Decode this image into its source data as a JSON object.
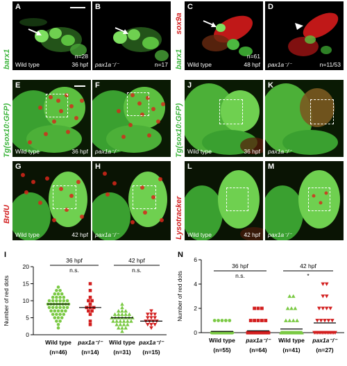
{
  "row1": {
    "side_label_left": "barx1",
    "side_label_right_green": "barx1",
    "side_label_right_red": "sox9a",
    "panels": [
      {
        "letter": "A",
        "bl": "Wild type",
        "br": "36 hpf",
        "tr": "",
        "n": "n=28"
      },
      {
        "letter": "B",
        "bl": "",
        "br": "",
        "genotype": "pax1a⁻/⁻",
        "n": "n=17"
      },
      {
        "letter": "C",
        "bl": "Wild type",
        "br": "48 hpf",
        "n": "n=61"
      },
      {
        "letter": "D",
        "genotype": "pax1a⁻/⁻",
        "n": "n=11/53"
      }
    ]
  },
  "row2": {
    "side_label_left": "Tg(sox10:GFP)",
    "side_label_right": "Tg(sox10:GFP)",
    "panels": [
      {
        "letter": "E",
        "bl": "Wild type",
        "br": "36 hpf"
      },
      {
        "letter": "F",
        "genotype": "pax1a⁻/⁻"
      },
      {
        "letter": "J",
        "bl": "Wild type",
        "br": "36 hpf"
      },
      {
        "letter": "K",
        "genotype": "pax1a⁻/⁻"
      }
    ]
  },
  "row3": {
    "side_label_left": "BrdU",
    "side_label_right": "Lysotracker",
    "panels": [
      {
        "letter": "G",
        "bl": "Wild type",
        "br": "42 hpf"
      },
      {
        "letter": "H",
        "genotype": "pax1a⁻/⁻"
      },
      {
        "letter": "L",
        "bl": "Wild type",
        "br": "42 hpf"
      },
      {
        "letter": "M",
        "genotype": "pax1a⁻/⁻"
      }
    ]
  },
  "chart_data": [
    {
      "type": "scatter",
      "panel_letter": "I",
      "ylabel": "Number of red dots",
      "ylim": [
        0,
        20
      ],
      "yticks": [
        0,
        5,
        10,
        15,
        20
      ],
      "group_labels": [
        "36 hpf",
        "42 hpf"
      ],
      "significance": [
        "n.s.",
        "n.s."
      ],
      "categories": [
        "Wild type",
        "pax1a⁻/⁻",
        "Wild type",
        "pax1a⁻/⁻"
      ],
      "n_labels": [
        "(n=46)",
        "(n=14)",
        "(n=31)",
        "(n=15)"
      ],
      "colors": [
        "#7ac943",
        "#d21e1e",
        "#7ac943",
        "#d21e1e"
      ],
      "markers": [
        "circle",
        "square",
        "triangle-up",
        "triangle-down"
      ],
      "means": [
        9,
        8,
        5,
        4
      ],
      "series": [
        {
          "values": [
            14,
            13,
            13,
            12,
            12,
            12,
            11,
            11,
            11,
            11,
            10,
            10,
            10,
            10,
            10,
            10,
            9,
            9,
            9,
            9,
            9,
            9,
            9,
            9,
            8,
            8,
            8,
            8,
            8,
            8,
            7,
            7,
            7,
            7,
            7,
            6,
            6,
            6,
            6,
            5,
            5,
            5,
            4,
            4,
            3,
            2
          ]
        },
        {
          "values": [
            15,
            13,
            11,
            10,
            10,
            9,
            8,
            8,
            8,
            7,
            7,
            6,
            4,
            3
          ]
        },
        {
          "values": [
            9,
            8,
            7,
            7,
            7,
            6,
            6,
            6,
            6,
            6,
            5,
            5,
            5,
            5,
            5,
            5,
            5,
            4,
            4,
            4,
            4,
            4,
            4,
            3,
            3,
            3,
            3,
            2,
            2,
            2,
            1
          ]
        },
        {
          "values": [
            7,
            6,
            6,
            6,
            5,
            5,
            5,
            4,
            4,
            4,
            4,
            3,
            3,
            3,
            2
          ]
        }
      ]
    },
    {
      "type": "scatter",
      "panel_letter": "N",
      "ylabel": "Number of red dots",
      "ylim": [
        0,
        6
      ],
      "yticks": [
        0,
        2,
        4,
        6
      ],
      "group_labels": [
        "36 hpf",
        "42 hpf"
      ],
      "significance": [
        "n.s.",
        "*"
      ],
      "categories": [
        "Wild type",
        "pax1a⁻/⁻",
        "Wild type",
        "pax1a⁻/⁻"
      ],
      "n_labels": [
        "(n=55)",
        "(n=64)",
        "(n=41)",
        "(n=27)"
      ],
      "colors": [
        "#7ac943",
        "#d21e1e",
        "#7ac943",
        "#d21e1e"
      ],
      "markers": [
        "circle",
        "square",
        "triangle-up",
        "triangle-down"
      ],
      "means": [
        0.1,
        0.15,
        0.3,
        0.8
      ],
      "series": [
        {
          "values": [
            1,
            1,
            1,
            1,
            1,
            0,
            0,
            0,
            0,
            0,
            0,
            0,
            0,
            0,
            0,
            0,
            0,
            0,
            0,
            0,
            0,
            0,
            0,
            0,
            0,
            0,
            0,
            0,
            0,
            0,
            0,
            0,
            0,
            0,
            0,
            0,
            0,
            0,
            0,
            0,
            0,
            0,
            0,
            0,
            0,
            0,
            0,
            0,
            0,
            0,
            0,
            0,
            0,
            0,
            0
          ]
        },
        {
          "values": [
            2,
            2,
            2,
            1,
            1,
            1,
            1,
            1,
            0,
            0,
            0,
            0,
            0,
            0,
            0,
            0,
            0,
            0,
            0,
            0,
            0,
            0,
            0,
            0,
            0,
            0,
            0,
            0,
            0,
            0,
            0,
            0,
            0,
            0,
            0,
            0,
            0,
            0,
            0,
            0,
            0,
            0,
            0,
            0,
            0,
            0,
            0,
            0,
            0,
            0,
            0,
            0,
            0,
            0,
            0,
            0,
            0,
            0,
            0,
            0,
            0,
            0,
            0,
            0
          ]
        },
        {
          "values": [
            3,
            3,
            2,
            2,
            2,
            1,
            1,
            1,
            1,
            0,
            0,
            0,
            0,
            0,
            0,
            0,
            0,
            0,
            0,
            0,
            0,
            0,
            0,
            0,
            0,
            0,
            0,
            0,
            0,
            0,
            0,
            0,
            0,
            0,
            0,
            0,
            0,
            0,
            0,
            0,
            0
          ]
        },
        {
          "values": [
            4,
            4,
            3,
            3,
            2,
            2,
            2,
            2,
            1,
            1,
            1,
            1,
            1,
            0,
            0,
            0,
            0,
            0,
            0,
            0,
            0,
            0,
            0,
            0,
            0,
            0,
            0
          ]
        }
      ]
    }
  ]
}
